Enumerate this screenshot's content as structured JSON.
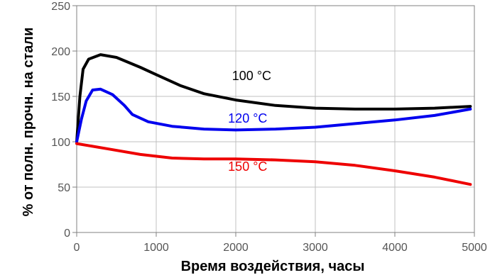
{
  "chart_data": {
    "type": "line",
    "title": "",
    "xlabel": "Время воздействия, часы",
    "ylabel": "% от полн. прочн. на стали",
    "xlim": [
      0,
      5000
    ],
    "ylim": [
      0,
      250
    ],
    "x_ticks": [
      0,
      1000,
      2000,
      3000,
      4000,
      5000
    ],
    "y_ticks": [
      0,
      50,
      100,
      150,
      200,
      250
    ],
    "grid": true,
    "legend": "none",
    "series": [
      {
        "name": "100 °C",
        "color": "#000000",
        "points": [
          [
            0,
            100
          ],
          [
            40,
            150
          ],
          [
            80,
            180
          ],
          [
            150,
            191
          ],
          [
            300,
            196
          ],
          [
            500,
            193
          ],
          [
            800,
            182
          ],
          [
            1000,
            174
          ],
          [
            1300,
            162
          ],
          [
            1600,
            153
          ],
          [
            2000,
            146
          ],
          [
            2500,
            140
          ],
          [
            3000,
            137
          ],
          [
            3500,
            136
          ],
          [
            4000,
            136
          ],
          [
            4500,
            137
          ],
          [
            4950,
            139
          ]
        ]
      },
      {
        "name": "120 °C",
        "color": "#0000ee",
        "points": [
          [
            0,
            100
          ],
          [
            60,
            125
          ],
          [
            120,
            145
          ],
          [
            200,
            157
          ],
          [
            300,
            158
          ],
          [
            450,
            152
          ],
          [
            600,
            140
          ],
          [
            700,
            130
          ],
          [
            900,
            122
          ],
          [
            1200,
            117
          ],
          [
            1600,
            114
          ],
          [
            2000,
            113
          ],
          [
            2500,
            114
          ],
          [
            3000,
            116
          ],
          [
            3500,
            120
          ],
          [
            4000,
            124
          ],
          [
            4500,
            129
          ],
          [
            4950,
            136
          ]
        ]
      },
      {
        "name": "150 °C",
        "color": "#ee0000",
        "points": [
          [
            0,
            98
          ],
          [
            400,
            92
          ],
          [
            800,
            86
          ],
          [
            1200,
            82
          ],
          [
            1600,
            81
          ],
          [
            2000,
            81
          ],
          [
            2500,
            80
          ],
          [
            3000,
            78
          ],
          [
            3500,
            74
          ],
          [
            4000,
            68
          ],
          [
            4500,
            61
          ],
          [
            4950,
            53
          ]
        ]
      }
    ]
  }
}
